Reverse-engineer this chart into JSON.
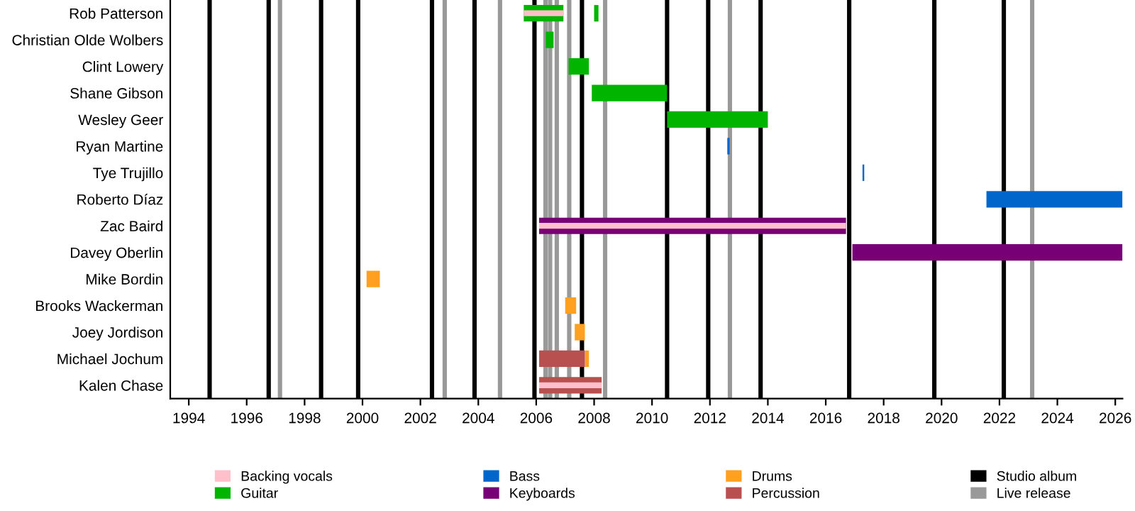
{
  "chart_data": {
    "type": "bar",
    "orientation": "horizontal",
    "categories": [
      "Rob Patterson",
      "Christian Olde Wolbers",
      "Clint Lowery",
      "Shane Gibson",
      "Wesley Geer",
      "Ryan Martine",
      "Tye Trujillo",
      "Roberto Díaz",
      "Zac Baird",
      "Davey Oberlin",
      "Mike Bordin",
      "Brooks Wackerman",
      "Joey Jordison",
      "Michael Jochum",
      "Kalen Chase"
    ],
    "series": [
      {
        "name": "Backing vocals",
        "color": "#ffc0cb",
        "base": [
          2005.57,
          null,
          null,
          null,
          null,
          null,
          null,
          null,
          2006.1,
          null,
          null,
          null,
          null,
          null,
          2006.1
        ],
        "values": [
          1.37,
          null,
          null,
          null,
          null,
          null,
          null,
          null,
          10.6,
          null,
          null,
          null,
          null,
          null,
          2.16
        ]
      },
      {
        "name": "Guitar",
        "color": "#00b400",
        "base": [
          2005.57,
          2006.33,
          2007.12,
          2007.92,
          2010.52,
          null,
          null,
          null,
          null,
          null,
          null,
          null,
          null,
          null,
          null
        ],
        "values": [
          1.37,
          0.27,
          0.7,
          2.6,
          3.48,
          null,
          null,
          null,
          null,
          null,
          null,
          null,
          null,
          null,
          null
        ]
      },
      {
        "name": "Bass",
        "color": "#0066cc",
        "base": [
          null,
          null,
          null,
          null,
          null,
          2012.6,
          2017.27,
          2021.55,
          null,
          null,
          null,
          null,
          null,
          null,
          null
        ],
        "values": [
          null,
          null,
          null,
          null,
          null,
          0.08,
          0.06,
          4.7,
          null,
          null,
          null,
          null,
          null,
          null,
          null
        ]
      },
      {
        "name": "Keyboards",
        "color": "#770077",
        "base": [
          null,
          null,
          null,
          null,
          null,
          null,
          null,
          null,
          2006.1,
          2016.92,
          null,
          null,
          null,
          null,
          null
        ],
        "values": [
          null,
          null,
          null,
          null,
          null,
          null,
          null,
          null,
          10.6,
          9.33,
          null,
          null,
          null,
          null,
          null
        ]
      },
      {
        "name": "Drums",
        "color": "#ffa020",
        "base": [
          null,
          null,
          null,
          null,
          null,
          null,
          null,
          null,
          null,
          null,
          2000.14,
          2007.0,
          2007.33,
          2007.68,
          null
        ],
        "values": [
          null,
          null,
          null,
          null,
          null,
          null,
          null,
          null,
          null,
          null,
          0.46,
          0.38,
          0.35,
          0.14,
          null
        ]
      },
      {
        "name": "Percussion",
        "color": "#b85050",
        "base": [
          null,
          null,
          null,
          null,
          null,
          null,
          null,
          null,
          null,
          null,
          null,
          null,
          null,
          2006.1,
          2006.1
        ],
        "values": [
          null,
          null,
          null,
          null,
          null,
          null,
          null,
          null,
          null,
          null,
          null,
          null,
          null,
          1.58,
          2.16
        ]
      },
      {
        "color": "#00b400",
        "base": [
          2008.0,
          null,
          null,
          null,
          null,
          null,
          null,
          null,
          null,
          null,
          null,
          null,
          null,
          null,
          null
        ],
        "values": [
          0.15,
          null,
          null,
          null,
          null,
          null,
          null,
          null,
          null,
          null,
          null,
          null,
          null,
          null,
          null
        ]
      }
    ],
    "ref_lines": [
      {
        "axis": "x",
        "value": 1994.72,
        "color": "#000000",
        "label": "Studio album"
      },
      {
        "axis": "x",
        "value": 1996.76,
        "color": "#000000"
      },
      {
        "axis": "x",
        "value": 1998.57,
        "color": "#000000"
      },
      {
        "axis": "x",
        "value": 1999.85,
        "color": "#000000"
      },
      {
        "axis": "x",
        "value": 2002.4,
        "color": "#000000"
      },
      {
        "axis": "x",
        "value": 2003.87,
        "color": "#000000"
      },
      {
        "axis": "x",
        "value": 2005.94,
        "color": "#000000"
      },
      {
        "axis": "x",
        "value": 2007.58,
        "color": "#000000"
      },
      {
        "axis": "x",
        "value": 2010.52,
        "color": "#000000"
      },
      {
        "axis": "x",
        "value": 2011.94,
        "color": "#000000"
      },
      {
        "axis": "x",
        "value": 2013.75,
        "color": "#000000"
      },
      {
        "axis": "x",
        "value": 2016.81,
        "color": "#000000"
      },
      {
        "axis": "x",
        "value": 2019.75,
        "color": "#000000"
      },
      {
        "axis": "x",
        "value": 2022.15,
        "color": "#000000"
      },
      {
        "axis": "x",
        "value": 1997.15,
        "color": "#999999",
        "label": "Live release"
      },
      {
        "axis": "x",
        "value": 2002.84,
        "color": "#999999"
      },
      {
        "axis": "x",
        "value": 2004.75,
        "color": "#999999"
      },
      {
        "axis": "x",
        "value": 2006.32,
        "color": "#999999"
      },
      {
        "axis": "x",
        "value": 2006.48,
        "color": "#999999"
      },
      {
        "axis": "x",
        "value": 2006.71,
        "color": "#999999"
      },
      {
        "axis": "x",
        "value": 2007.14,
        "color": "#999999"
      },
      {
        "axis": "x",
        "value": 2008.38,
        "color": "#999999"
      },
      {
        "axis": "x",
        "value": 2012.69,
        "color": "#999999"
      },
      {
        "axis": "x",
        "value": 2023.13,
        "color": "#999999"
      }
    ],
    "xlim": [
      1993.36,
      2026.25
    ],
    "xticks": [
      1994,
      1996,
      1998,
      2000,
      2002,
      2004,
      2006,
      2008,
      2010,
      2012,
      2014,
      2016,
      2018,
      2020,
      2022,
      2024,
      2026
    ],
    "legend": "bottom",
    "grid": false
  }
}
